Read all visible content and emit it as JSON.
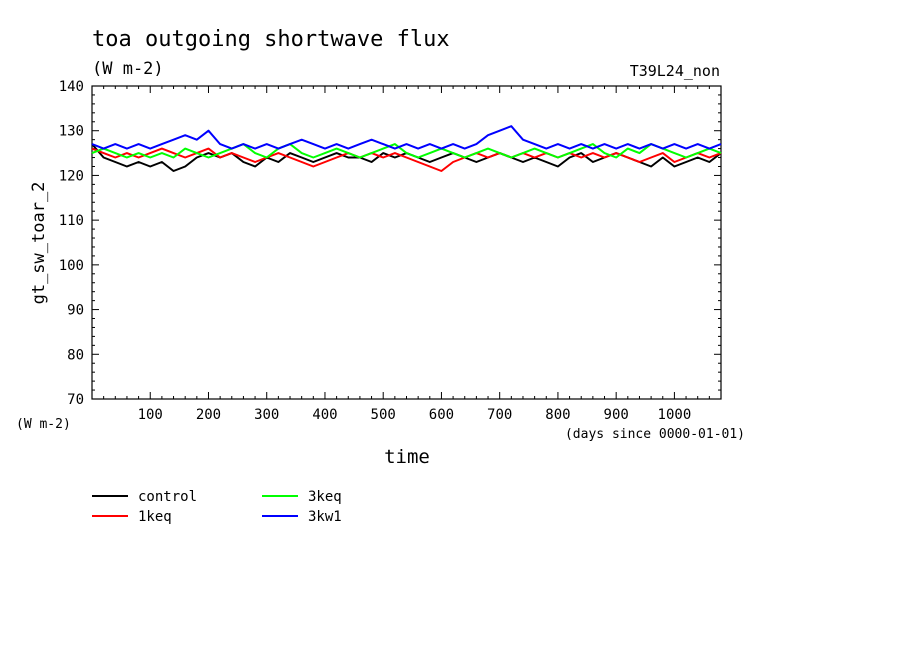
{
  "chart_data": {
    "type": "line",
    "title": "toa outgoing shortwave flux",
    "subtitle": "(W m-2)",
    "run_label": "T39L24_non",
    "xlabel": "time",
    "xunits": "(days since 0000-01-01)",
    "ylabel": "gt_sw_toar_2",
    "yunits": "(W m-2)",
    "xlim": [
      0,
      1080
    ],
    "ylim": [
      70,
      140
    ],
    "x_ticks": [
      100,
      200,
      300,
      400,
      500,
      600,
      700,
      800,
      900,
      1000
    ],
    "y_ticks": [
      70,
      80,
      90,
      100,
      110,
      120,
      130,
      140
    ],
    "grid": false,
    "legend_placement": "bottom",
    "x": [
      0,
      20,
      40,
      60,
      80,
      100,
      120,
      140,
      160,
      180,
      200,
      220,
      240,
      260,
      280,
      300,
      320,
      340,
      360,
      380,
      400,
      420,
      440,
      460,
      480,
      500,
      520,
      540,
      560,
      580,
      600,
      620,
      640,
      660,
      680,
      700,
      720,
      740,
      760,
      780,
      800,
      820,
      840,
      860,
      880,
      900,
      920,
      940,
      960,
      980,
      1000,
      1020,
      1040,
      1060,
      1080
    ],
    "series": [
      {
        "name": "control",
        "color": "#000000",
        "values": [
          127,
          124,
          123,
          122,
          123,
          122,
          123,
          121,
          122,
          124,
          125,
          124,
          125,
          123,
          122,
          124,
          123,
          125,
          124,
          123,
          124,
          125,
          124,
          124,
          123,
          125,
          124,
          125,
          124,
          123,
          124,
          125,
          124,
          123,
          124,
          125,
          124,
          123,
          124,
          123,
          122,
          124,
          125,
          123,
          124,
          125,
          124,
          123,
          122,
          124,
          122,
          123,
          124,
          123,
          125
        ]
      },
      {
        "name": "1keq",
        "color": "#ff0000",
        "values": [
          126,
          125,
          124,
          125,
          124,
          125,
          126,
          125,
          124,
          125,
          126,
          124,
          125,
          124,
          123,
          124,
          125,
          124,
          123,
          122,
          123,
          124,
          125,
          124,
          125,
          124,
          125,
          124,
          123,
          122,
          121,
          123,
          124,
          125,
          124,
          125,
          124,
          125,
          124,
          125,
          124,
          125,
          124,
          125,
          124,
          125,
          124,
          123,
          124,
          125,
          123,
          124,
          125,
          124,
          125
        ]
      },
      {
        "name": "3keq",
        "color": "#00ff00",
        "values": [
          125,
          126,
          125,
          124,
          125,
          124,
          125,
          124,
          126,
          125,
          124,
          125,
          126,
          127,
          125,
          124,
          126,
          127,
          125,
          124,
          125,
          126,
          125,
          124,
          125,
          126,
          127,
          125,
          124,
          125,
          126,
          125,
          124,
          125,
          126,
          125,
          124,
          125,
          126,
          125,
          124,
          125,
          126,
          127,
          125,
          124,
          126,
          125,
          127,
          126,
          125,
          124,
          125,
          126,
          125
        ]
      },
      {
        "name": "3kw1",
        "color": "#0000ff",
        "values": [
          127,
          126,
          127,
          126,
          127,
          126,
          127,
          128,
          129,
          128,
          130,
          127,
          126,
          127,
          126,
          127,
          126,
          127,
          128,
          127,
          126,
          127,
          126,
          127,
          128,
          127,
          126,
          127,
          126,
          127,
          126,
          127,
          126,
          127,
          129,
          130,
          131,
          128,
          127,
          126,
          127,
          126,
          127,
          126,
          127,
          126,
          127,
          126,
          127,
          126,
          127,
          126,
          127,
          126,
          127
        ]
      }
    ]
  }
}
